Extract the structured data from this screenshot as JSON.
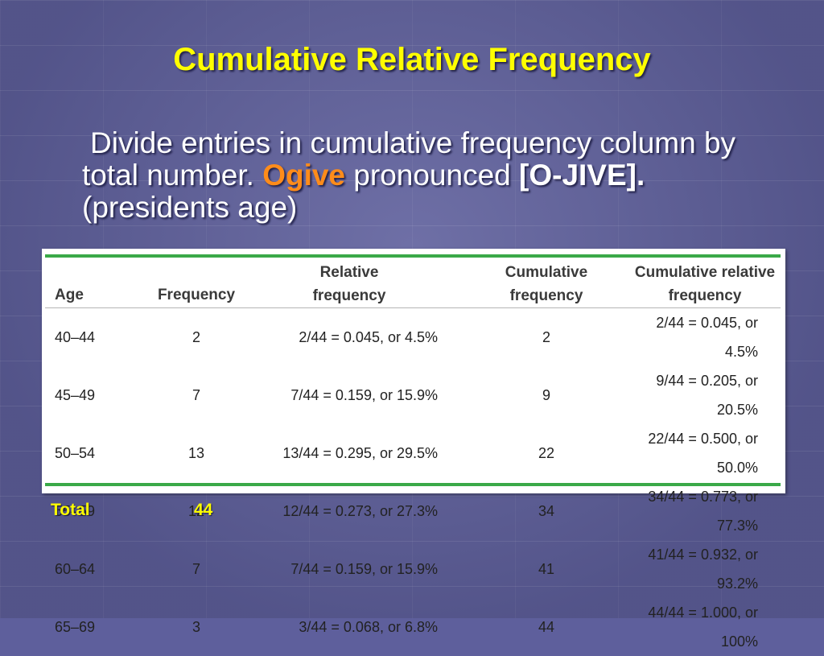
{
  "slide": {
    "title": "Cumulative Relative Frequency",
    "body": {
      "part1": "Divide entries in cumulative frequency column by total number.",
      "highlight": "Ogive",
      "part2": "pronounced",
      "pronunciation": "[O-JIVE].",
      "part3": "(presidents age)"
    },
    "colors": {
      "title": "#ffff00",
      "highlight": "#ff8c1a",
      "background": "#5e5f9c",
      "table_rule": "#3aa948"
    }
  },
  "table": {
    "headers": {
      "age": "Age",
      "frequency": "Frequency",
      "relative_line1": "Relative",
      "relative_line2": "frequency",
      "cumulative_line1": "Cumulative",
      "cumulative_line2": "frequency",
      "cum_rel_line1": "Cumulative relative",
      "cum_rel_line2": "frequency"
    },
    "rows": [
      {
        "age": "40–44",
        "frequency": "2",
        "relative": "2/44 = 0.045, or 4.5%",
        "cumulative": "2",
        "cum_rel": "2/44 = 0.045, or 4.5%"
      },
      {
        "age": "45–49",
        "frequency": "7",
        "relative": "7/44 = 0.159, or 15.9%",
        "cumulative": "9",
        "cum_rel": "9/44 = 0.205, or 20.5%"
      },
      {
        "age": "50–54",
        "frequency": "13",
        "relative": "13/44 = 0.295, or 29.5%",
        "cumulative": "22",
        "cum_rel": "22/44 = 0.500, or 50.0%"
      },
      {
        "age": "55–59",
        "frequency": "12",
        "relative": "12/44 = 0.273, or 27.3%",
        "cumulative": "34",
        "cum_rel": "34/44 = 0.773, or 77.3%"
      },
      {
        "age": "60–64",
        "frequency": "7",
        "relative": "7/44 = 0.159, or 15.9%",
        "cumulative": "41",
        "cum_rel": "41/44 = 0.932, or 93.2%"
      },
      {
        "age": "65–69",
        "frequency": "3",
        "relative": "3/44 = 0.068, or 6.8%",
        "cumulative": "44",
        "cum_rel": "44/44 = 1.000, or 100%"
      }
    ]
  },
  "total": {
    "label": "Total",
    "value": "44"
  }
}
